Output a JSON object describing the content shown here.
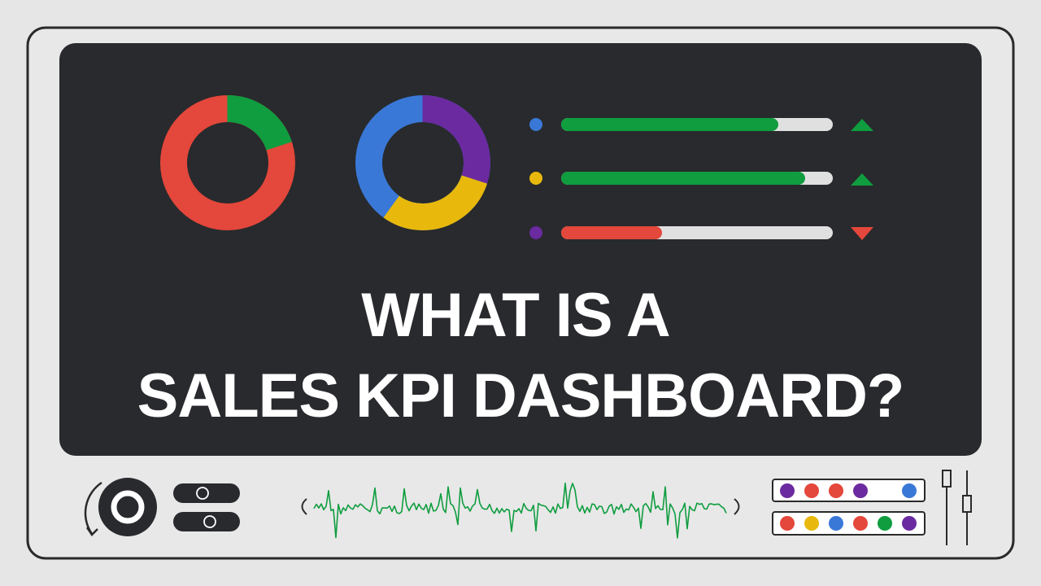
{
  "title": {
    "line1": "WHAT IS A",
    "line2": "SALES KPI DASHBOARD?"
  }
}
